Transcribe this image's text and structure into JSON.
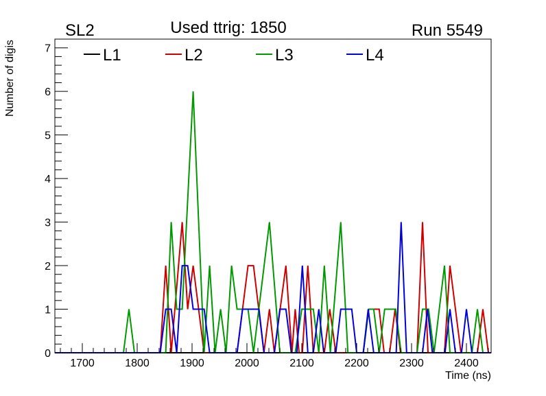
{
  "chart_data": {
    "type": "line",
    "title_left": "SL2",
    "title": "Used ttrig: 1850",
    "title_right": "Run 5549",
    "xlabel": "Time (ns)",
    "ylabel": "Number of digis",
    "xlim": [
      1650,
      2445
    ],
    "ylim": [
      0,
      7.2
    ],
    "xticks": [
      1700,
      1800,
      1900,
      2000,
      2100,
      2200,
      2300,
      2400
    ],
    "yticks": [
      0,
      1,
      2,
      3,
      4,
      5,
      6,
      7
    ],
    "legend_position": "top",
    "series": [
      {
        "name": "L1",
        "color": "#000000",
        "points": [
          [
            1650,
            0
          ],
          [
            2445,
            0
          ]
        ]
      },
      {
        "name": "L2",
        "color": "#cc0000",
        "points": [
          [
            1650,
            0
          ],
          [
            1842,
            0
          ],
          [
            1852,
            2
          ],
          [
            1862,
            0
          ],
          [
            1882,
            3
          ],
          [
            1892,
            1
          ],
          [
            1902,
            2
          ],
          [
            1922,
            0
          ],
          [
            1982,
            0
          ],
          [
            1992,
            1
          ],
          [
            2002,
            2
          ],
          [
            2012,
            2
          ],
          [
            2031,
            0
          ],
          [
            2041,
            1
          ],
          [
            2050,
            0
          ],
          [
            2071,
            2
          ],
          [
            2082,
            0
          ],
          [
            2088,
            1
          ],
          [
            2095,
            0
          ],
          [
            2101,
            0
          ],
          [
            2111,
            2
          ],
          [
            2121,
            0
          ],
          [
            2141,
            0
          ],
          [
            2151,
            1
          ],
          [
            2162,
            0
          ],
          [
            2212,
            0
          ],
          [
            2222,
            1
          ],
          [
            2241,
            1
          ],
          [
            2250,
            0
          ],
          [
            2260,
            0
          ],
          [
            2270,
            1
          ],
          [
            2280,
            0
          ],
          [
            2310,
            0
          ],
          [
            2320,
            3
          ],
          [
            2330,
            0
          ],
          [
            2360,
            0
          ],
          [
            2370,
            2
          ],
          [
            2390,
            0
          ],
          [
            2420,
            0
          ],
          [
            2430,
            1
          ],
          [
            2440,
            0
          ],
          [
            2445,
            0
          ]
        ]
      },
      {
        "name": "L3",
        "color": "#009900",
        "points": [
          [
            1650,
            0
          ],
          [
            1775,
            0
          ],
          [
            1785,
            1
          ],
          [
            1795,
            0
          ],
          [
            1852,
            0
          ],
          [
            1862,
            3
          ],
          [
            1872,
            1
          ],
          [
            1882,
            1
          ],
          [
            1902,
            6
          ],
          [
            1922,
            0
          ],
          [
            1932,
            2
          ],
          [
            1942,
            0
          ],
          [
            1952,
            1
          ],
          [
            1962,
            0
          ],
          [
            1972,
            2
          ],
          [
            1982,
            1
          ],
          [
            2002,
            1
          ],
          [
            2012,
            0
          ],
          [
            2041,
            3
          ],
          [
            2060,
            0
          ],
          [
            2088,
            0
          ],
          [
            2100,
            1
          ],
          [
            2121,
            1
          ],
          [
            2131,
            0
          ],
          [
            2141,
            2
          ],
          [
            2152,
            0
          ],
          [
            2171,
            3
          ],
          [
            2184,
            0
          ],
          [
            2212,
            0
          ],
          [
            2222,
            1
          ],
          [
            2231,
            1
          ],
          [
            2241,
            0
          ],
          [
            2251,
            1
          ],
          [
            2271,
            1
          ],
          [
            2281,
            0
          ],
          [
            2310,
            0
          ],
          [
            2320,
            1
          ],
          [
            2331,
            1
          ],
          [
            2341,
            0
          ],
          [
            2360,
            2
          ],
          [
            2370,
            0
          ],
          [
            2410,
            0
          ],
          [
            2420,
            1
          ],
          [
            2430,
            0
          ],
          [
            2445,
            0
          ]
        ]
      },
      {
        "name": "L4",
        "color": "#0000dd",
        "points": [
          [
            1650,
            0
          ],
          [
            1842,
            0
          ],
          [
            1852,
            1
          ],
          [
            1862,
            1
          ],
          [
            1872,
            0
          ],
          [
            1882,
            2
          ],
          [
            1892,
            2
          ],
          [
            1902,
            1
          ],
          [
            1922,
            1
          ],
          [
            1932,
            0
          ],
          [
            1982,
            0
          ],
          [
            1992,
            1
          ],
          [
            2022,
            1
          ],
          [
            2031,
            0
          ],
          [
            2050,
            0
          ],
          [
            2060,
            1
          ],
          [
            2071,
            1
          ],
          [
            2081,
            0
          ],
          [
            2091,
            0
          ],
          [
            2101,
            2
          ],
          [
            2111,
            0
          ],
          [
            2121,
            0
          ],
          [
            2131,
            1
          ],
          [
            2140,
            0
          ],
          [
            2162,
            0
          ],
          [
            2171,
            1
          ],
          [
            2191,
            1
          ],
          [
            2200,
            0
          ],
          [
            2212,
            0
          ],
          [
            2221,
            1
          ],
          [
            2231,
            0
          ],
          [
            2272,
            0
          ],
          [
            2281,
            3
          ],
          [
            2291,
            0
          ],
          [
            2320,
            0
          ],
          [
            2329,
            1
          ],
          [
            2338,
            0
          ],
          [
            2361,
            0
          ],
          [
            2370,
            1
          ],
          [
            2380,
            0
          ],
          [
            2391,
            0
          ],
          [
            2400,
            1
          ],
          [
            2410,
            0
          ],
          [
            2445,
            0
          ]
        ]
      }
    ]
  }
}
